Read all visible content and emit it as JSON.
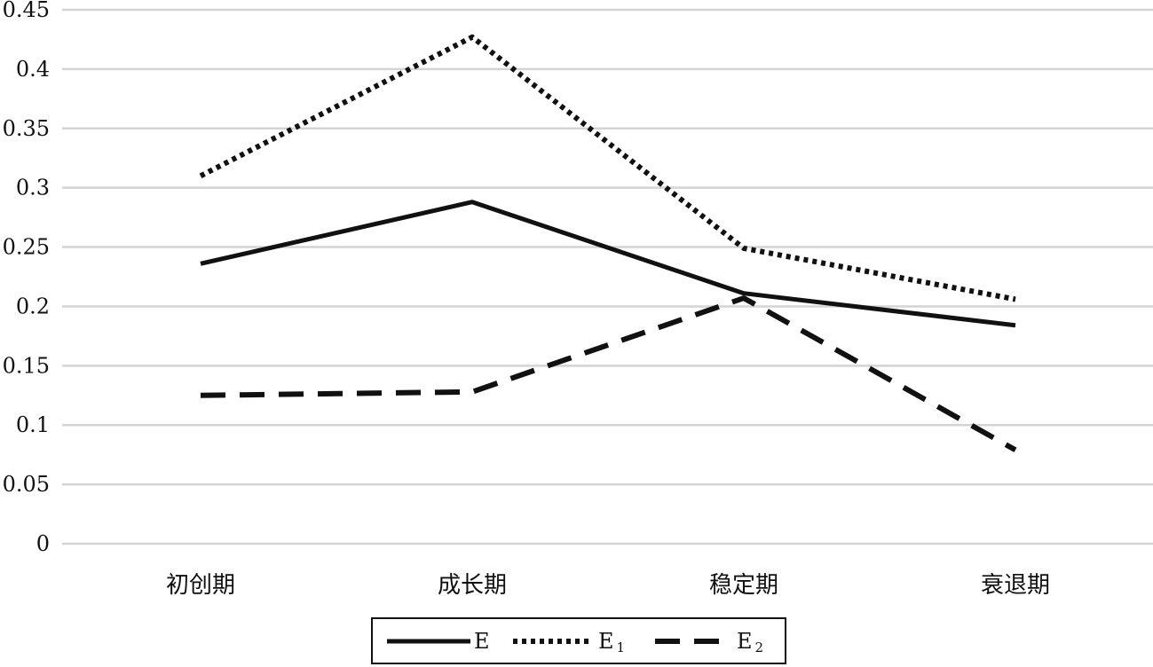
{
  "chart_data": {
    "type": "line",
    "categories": [
      "初创期",
      "成长期",
      "稳定期",
      "衰退期"
    ],
    "series": [
      {
        "name": "E",
        "name_base": "E",
        "name_sub": "",
        "style": "solid",
        "values": [
          0.236,
          0.288,
          0.211,
          0.184
        ]
      },
      {
        "name": "E1",
        "name_base": "E",
        "name_sub": "1",
        "style": "dotted",
        "values": [
          0.31,
          0.427,
          0.249,
          0.206
        ]
      },
      {
        "name": "E2",
        "name_base": "E",
        "name_sub": "2",
        "style": "dashed",
        "values": [
          0.125,
          0.128,
          0.207,
          0.079
        ]
      }
    ],
    "yticks": [
      "0",
      "0.05",
      "0.1",
      "0.15",
      "0.2",
      "0.25",
      "0.3",
      "0.35",
      "0.4",
      "0.45"
    ],
    "ylim": [
      0,
      0.45
    ],
    "grid": true,
    "legend_position": "bottom",
    "line_color": "#111111",
    "grid_color": "#d4d4d4"
  }
}
